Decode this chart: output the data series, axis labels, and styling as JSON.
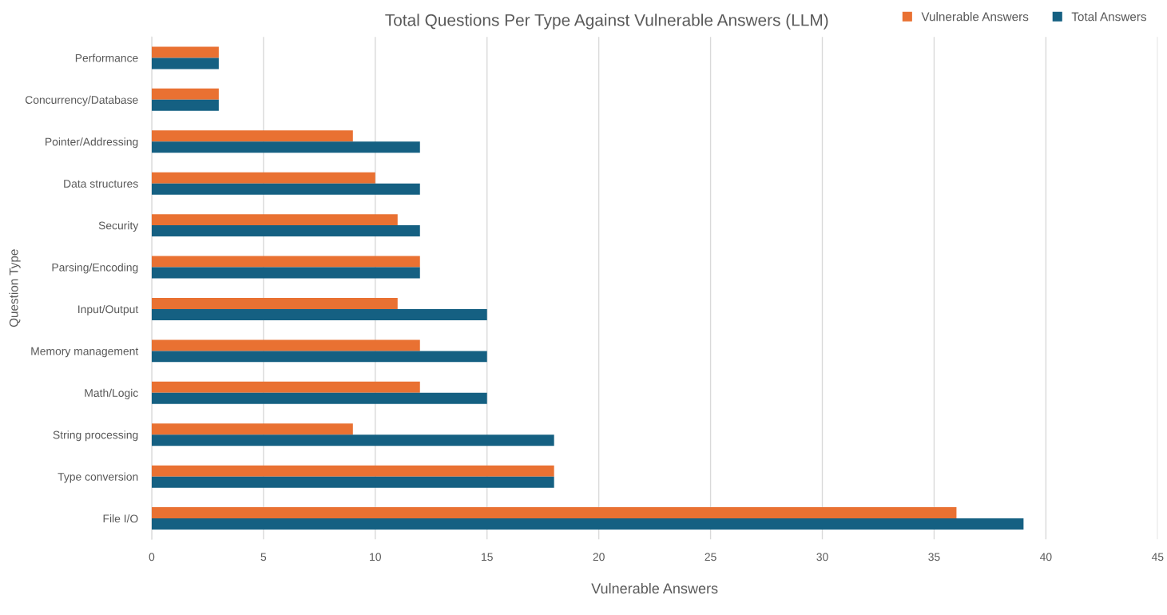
{
  "chart_data": {
    "type": "bar",
    "orientation": "horizontal",
    "title": "Total Questions Per Type Against Vulnerable Answers (LLM)",
    "xlabel": "Vulnerable Answers",
    "ylabel": "Question Type",
    "categories": [
      "Performance",
      "Concurrency/Database",
      "Pointer/Addressing",
      "Data structures",
      "Security",
      "Parsing/Encoding",
      "Input/Output",
      "Memory management",
      "Math/Logic",
      "String processing",
      "Type conversion",
      "File I/O"
    ],
    "series": [
      {
        "name": "Vulnerable Answers",
        "color": "#e97132",
        "values": [
          3,
          3,
          9,
          10,
          11,
          12,
          11,
          12,
          12,
          9,
          18,
          36
        ]
      },
      {
        "name": "Total Answers",
        "color": "#156082",
        "values": [
          3,
          3,
          12,
          12,
          12,
          12,
          15,
          15,
          15,
          18,
          18,
          39
        ]
      }
    ],
    "xlim": [
      0,
      45
    ],
    "xticks": [
      0,
      5,
      10,
      15,
      20,
      25,
      30,
      35,
      40,
      45
    ],
    "grid": "x",
    "legend": "top right"
  }
}
